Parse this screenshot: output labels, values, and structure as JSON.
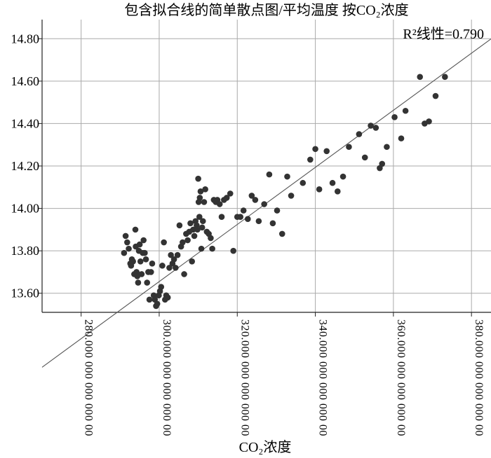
{
  "chart_data": {
    "type": "scatter",
    "title": "包含拟合线的简单散点图/平均温度 按CO₂浓度",
    "xlabel": "CO₂浓度",
    "ylabel": "",
    "annotation": "R²线性=0.790",
    "xlim": [
      270,
      385
    ],
    "ylim": [
      13.51,
      14.89
    ],
    "x_ticks": [
      280,
      300,
      320,
      340,
      360,
      380
    ],
    "x_tick_labels": [
      "280.000 000 000 000 00",
      "300.000 000 000 000 00",
      "320.000 000 000 000 00",
      "340.000 000 000 000 00",
      "360.000 000 000 000 00",
      "380.000 000 000 000 00"
    ],
    "y_ticks": [
      13.6,
      13.8,
      14.0,
      14.2,
      14.4,
      14.6,
      14.8
    ],
    "y_tick_labels": [
      "13.60",
      "13.80",
      "14.00",
      "14.20",
      "14.40",
      "14.60",
      "14.80"
    ],
    "grid": true,
    "fit_line": {
      "slope": 0.01346,
      "intercept": 9.617
    },
    "series": [
      {
        "color": "#333333",
        "points": [
          [
            291.0,
            13.79
          ],
          [
            291.4,
            13.87
          ],
          [
            291.8,
            13.84
          ],
          [
            292.2,
            13.81
          ],
          [
            292.6,
            13.74
          ],
          [
            292.8,
            13.73
          ],
          [
            293.0,
            13.76
          ],
          [
            293.3,
            13.75
          ],
          [
            293.6,
            13.69
          ],
          [
            293.9,
            13.9
          ],
          [
            294.0,
            13.82
          ],
          [
            294.2,
            13.7
          ],
          [
            294.4,
            13.68
          ],
          [
            294.6,
            13.65
          ],
          [
            294.8,
            13.8
          ],
          [
            295.0,
            13.83
          ],
          [
            295.2,
            13.75
          ],
          [
            295.5,
            13.69
          ],
          [
            295.8,
            13.79
          ],
          [
            296.0,
            13.85
          ],
          [
            296.3,
            13.79
          ],
          [
            296.6,
            13.76
          ],
          [
            296.9,
            13.65
          ],
          [
            297.2,
            13.7
          ],
          [
            297.5,
            13.57
          ],
          [
            297.9,
            13.7
          ],
          [
            298.2,
            13.74
          ],
          [
            298.6,
            13.59
          ],
          [
            298.9,
            13.57
          ],
          [
            299.2,
            13.54
          ],
          [
            299.5,
            13.55
          ],
          [
            299.9,
            13.59
          ],
          [
            300.2,
            13.61
          ],
          [
            300.5,
            13.63
          ],
          [
            300.8,
            13.73
          ],
          [
            301.2,
            13.84
          ],
          [
            301.5,
            13.57
          ],
          [
            301.8,
            13.59
          ],
          [
            302.2,
            13.58
          ],
          [
            302.6,
            13.72
          ],
          [
            303.0,
            13.78
          ],
          [
            303.4,
            13.74
          ],
          [
            303.8,
            13.76
          ],
          [
            304.2,
            13.72
          ],
          [
            304.7,
            13.78
          ],
          [
            305.2,
            13.92
          ],
          [
            305.6,
            13.82
          ],
          [
            306.0,
            13.84
          ],
          [
            306.4,
            13.69
          ],
          [
            306.9,
            13.88
          ],
          [
            307.3,
            13.85
          ],
          [
            307.7,
            13.89
          ],
          [
            308.0,
            13.93
          ],
          [
            308.4,
            13.75
          ],
          [
            308.7,
            13.9
          ],
          [
            309.0,
            13.87
          ],
          [
            309.3,
            13.94
          ],
          [
            309.6,
            13.92
          ],
          [
            309.8,
            13.9
          ],
          [
            310.0,
            14.14
          ],
          [
            310.1,
            14.03
          ],
          [
            310.3,
            13.96
          ],
          [
            310.4,
            14.05
          ],
          [
            310.6,
            14.08
          ],
          [
            310.8,
            13.81
          ],
          [
            311.0,
            13.91
          ],
          [
            311.2,
            13.94
          ],
          [
            311.5,
            14.03
          ],
          [
            311.8,
            14.09
          ],
          [
            312.2,
            13.89
          ],
          [
            312.7,
            13.88
          ],
          [
            313.2,
            13.86
          ],
          [
            313.6,
            13.81
          ],
          [
            314.0,
            14.04
          ],
          [
            314.5,
            14.03
          ],
          [
            314.9,
            14.04
          ],
          [
            315.5,
            14.02
          ],
          [
            316.0,
            13.96
          ],
          [
            316.6,
            14.04
          ],
          [
            317.3,
            14.05
          ],
          [
            318.2,
            14.07
          ],
          [
            319.0,
            13.8
          ],
          [
            320.0,
            13.96
          ],
          [
            320.8,
            13.96
          ],
          [
            321.6,
            13.99
          ],
          [
            322.7,
            13.95
          ],
          [
            323.7,
            14.06
          ],
          [
            324.6,
            14.04
          ],
          [
            325.5,
            13.94
          ],
          [
            326.9,
            14.02
          ],
          [
            328.2,
            14.16
          ],
          [
            329.1,
            13.93
          ],
          [
            330.2,
            13.99
          ],
          [
            331.5,
            13.88
          ],
          [
            332.8,
            14.15
          ],
          [
            333.8,
            14.06
          ],
          [
            336.8,
            14.12
          ],
          [
            338.7,
            14.23
          ],
          [
            340.0,
            14.28
          ],
          [
            341.0,
            14.09
          ],
          [
            342.9,
            14.27
          ],
          [
            344.4,
            14.12
          ],
          [
            345.7,
            14.08
          ],
          [
            347.1,
            14.15
          ],
          [
            348.6,
            14.29
          ],
          [
            351.2,
            14.35
          ],
          [
            352.7,
            14.24
          ],
          [
            354.2,
            14.39
          ],
          [
            355.5,
            14.38
          ],
          [
            356.5,
            14.19
          ],
          [
            357.1,
            14.21
          ],
          [
            358.3,
            14.29
          ],
          [
            360.3,
            14.43
          ],
          [
            362.0,
            14.33
          ],
          [
            363.1,
            14.46
          ],
          [
            366.8,
            14.62
          ],
          [
            368.0,
            14.4
          ],
          [
            369.1,
            14.41
          ],
          [
            370.8,
            14.53
          ],
          [
            373.2,
            14.62
          ]
        ]
      }
    ]
  }
}
